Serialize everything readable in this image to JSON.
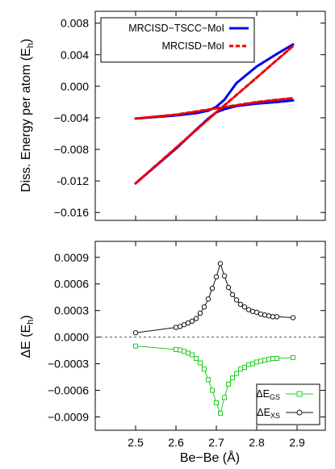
{
  "charts": [
    {
      "type": "line",
      "ylabel": "Diss. Energy per atom (E",
      "ylabel_sub": "h",
      "ylabel_end": ")",
      "xlim": [
        2.4,
        2.97
      ],
      "ylim": [
        -0.017,
        0.0095
      ],
      "yticks": [
        0.008,
        0.004,
        0.0,
        -0.004,
        -0.008,
        -0.012,
        -0.016
      ],
      "ytick_labels": [
        "0.008",
        "0.004",
        "0.000",
        "−0.004",
        "−0.008",
        "-0.012",
        "−0.016"
      ],
      "xticks": [
        2.5,
        2.6,
        2.7,
        2.8,
        2.9
      ],
      "legend": {
        "position": "top-right"
      },
      "series": [
        {
          "name": "MRCISD−TSCC−MoI",
          "color": "#0000ee",
          "dashed": false,
          "x": [
            2.5,
            2.6,
            2.65,
            2.68,
            2.7,
            2.72,
            2.75,
            2.8,
            2.85,
            2.89
          ],
          "y": [
            -0.0041,
            -0.0037,
            -0.0034,
            -0.0031,
            -0.0026,
            -0.0017,
            0.0004,
            0.0025,
            0.0041,
            0.0053
          ]
        },
        {
          "name": "",
          "color": "#0000ee",
          "dashed": false,
          "x": [
            2.5,
            2.6,
            2.65,
            2.68,
            2.7,
            2.72,
            2.75,
            2.8,
            2.85,
            2.89
          ],
          "y": [
            -0.0123,
            -0.0079,
            -0.0055,
            -0.0041,
            -0.0033,
            -0.0029,
            -0.0025,
            -0.0022,
            -0.002,
            -0.0018
          ]
        },
        {
          "name": "MRCISD−MoI",
          "color": "#ee0000",
          "dashed": true,
          "x": [
            2.5,
            2.6,
            2.7,
            2.8,
            2.89
          ],
          "y": [
            -0.0041,
            -0.0036,
            -0.0028,
            -0.002,
            -0.0015
          ]
        },
        {
          "name": "",
          "color": "#ee0000",
          "dashed": true,
          "x": [
            2.5,
            2.6,
            2.7,
            2.8,
            2.89
          ],
          "y": [
            -0.0123,
            -0.0078,
            -0.0033,
            0.0011,
            0.0051
          ]
        }
      ]
    },
    {
      "type": "line",
      "ylabel": "ΔE (E",
      "ylabel_sub": "h",
      "ylabel_end": ")",
      "xlabel": "Be−Be (Å)",
      "xlim": [
        2.4,
        2.97
      ],
      "ylim": [
        -0.00105,
        0.00108
      ],
      "yticks": [
        0.0009,
        0.0006,
        0.0003,
        0.0,
        -0.0003,
        -0.0006,
        -0.0009
      ],
      "ytick_labels": [
        "0.0009",
        "0.0006",
        "0.0003",
        "0.0000",
        "−0.0003",
        "−0.0006",
        "−0.0009"
      ],
      "xticks": [
        2.5,
        2.6,
        2.7,
        2.8,
        2.9
      ],
      "xtick_labels": [
        "2.5",
        "2.6",
        "2.7",
        "2.8",
        "2.9"
      ],
      "legend": {
        "position": "bottom-right"
      },
      "zero_line": true,
      "series": [
        {
          "name": "ΔE",
          "name_sub": "GS",
          "color": "#22cc22",
          "marker": "square",
          "x": [
            2.5,
            2.6,
            2.61,
            2.62,
            2.63,
            2.64,
            2.65,
            2.66,
            2.67,
            2.68,
            2.69,
            2.7,
            2.71,
            2.72,
            2.73,
            2.74,
            2.75,
            2.76,
            2.77,
            2.78,
            2.79,
            2.8,
            2.81,
            2.82,
            2.83,
            2.84,
            2.85,
            2.89
          ],
          "y": [
            -0.0001,
            -0.00014,
            -0.000145,
            -0.00016,
            -0.00018,
            -0.0002,
            -0.00024,
            -0.00029,
            -0.00036,
            -0.00048,
            -0.0006,
            -0.00074,
            -0.00086,
            -0.00068,
            -0.00053,
            -0.00046,
            -0.00041,
            -0.00036,
            -0.00034,
            -0.00031,
            -0.0003,
            -0.00028,
            -0.00027,
            -0.00026,
            -0.00025,
            -0.00024,
            -0.00024,
            -0.00023
          ]
        },
        {
          "name": "ΔE",
          "name_sub": "XS",
          "color": "#111111",
          "marker": "circle",
          "x": [
            2.5,
            2.6,
            2.61,
            2.62,
            2.63,
            2.64,
            2.65,
            2.66,
            2.67,
            2.68,
            2.69,
            2.7,
            2.71,
            2.72,
            2.73,
            2.74,
            2.75,
            2.76,
            2.77,
            2.78,
            2.79,
            2.8,
            2.81,
            2.82,
            2.83,
            2.84,
            2.85,
            2.89
          ],
          "y": [
            5e-05,
            0.00011,
            0.00012,
            0.00014,
            0.00016,
            0.00018,
            0.00021,
            0.00027,
            0.00034,
            0.00043,
            0.00055,
            0.00068,
            0.00083,
            0.00069,
            0.00056,
            0.00048,
            0.00042,
            0.00037,
            0.00034,
            0.00031,
            0.00029,
            0.00028,
            0.00026,
            0.00025,
            0.00024,
            0.00023,
            0.00023,
            0.00022
          ]
        }
      ]
    }
  ]
}
